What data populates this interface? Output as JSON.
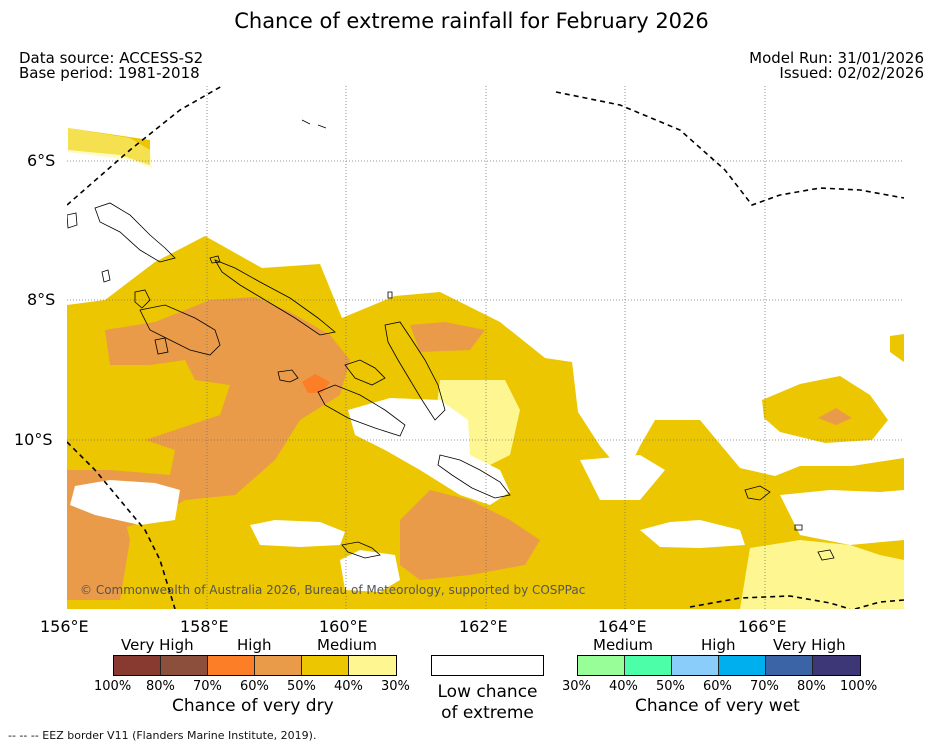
{
  "title": "Chance of extreme rainfall for February 2026",
  "source": {
    "data_source": "Data source: ACCESS-S2",
    "base_period": "Base period: 1981-2018",
    "model_run": "Model Run: 31/01/2026",
    "issued": "Issued: 02/02/2026"
  },
  "map": {
    "lat_labels": [
      "6°S",
      "8°S",
      "10°S"
    ],
    "lon_labels": [
      "156°E",
      "158°E",
      "160°E",
      "162°E",
      "164°E",
      "166°E"
    ],
    "copyright": "© Commonwealth of Australia 2026, Bureau of Meteorology, supported by COSPPac",
    "colors": {
      "dry_30": "#fef791",
      "dry_40": "#ecc600",
      "dry_50": "#e99b49",
      "dry_70": "#fc7e26",
      "dry_80": "#8c4f3b",
      "dry_100": "#883a30"
    }
  },
  "legend": {
    "dry": {
      "levels": [
        "Very High",
        "High",
        "Medium"
      ],
      "percents": [
        "100%",
        "80%",
        "70%",
        "60%",
        "50%",
        "40%",
        "30%"
      ],
      "caption": "Chance of very dry",
      "colors": [
        "#883a30",
        "#8c4f3b",
        "#fc7e26",
        "#e99b49",
        "#ecc600",
        "#fef791"
      ]
    },
    "low": {
      "line1": "Low chance",
      "line2": "of extreme",
      "color": "#ffffff"
    },
    "wet": {
      "levels": [
        "Medium",
        "High",
        "Very High"
      ],
      "percents": [
        "30%",
        "40%",
        "50%",
        "60%",
        "70%",
        "80%",
        "100%"
      ],
      "caption": "Chance of very wet",
      "colors": [
        "#98ff98",
        "#4cfea8",
        "#8acdfa",
        "#00b0ee",
        "#3a64a6",
        "#3e3777"
      ]
    }
  },
  "footnote": "--  --  -- EEZ border V11 (Flanders Marine Institute, 2019)."
}
